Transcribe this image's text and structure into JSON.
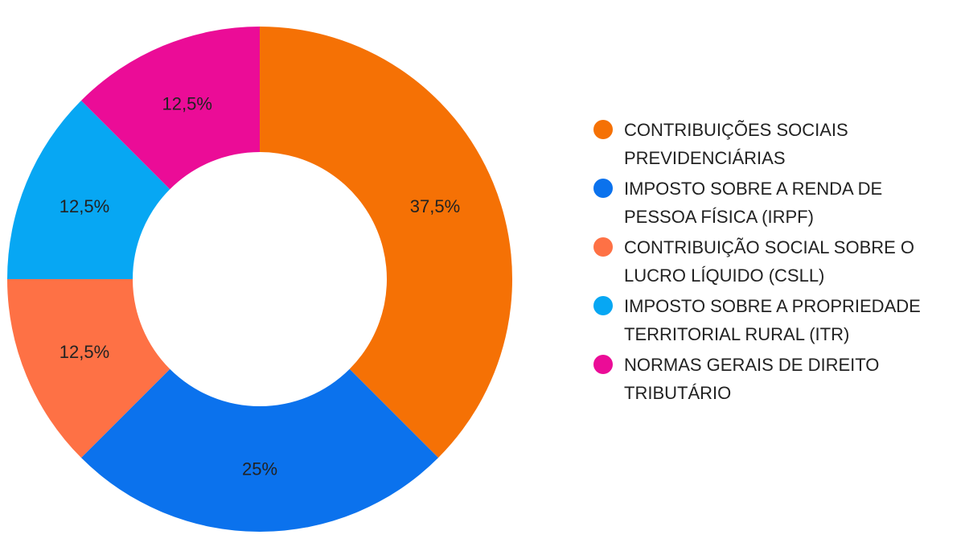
{
  "chart_data": {
    "type": "pie",
    "donut": true,
    "title": "",
    "legend_position": "right",
    "start_angle": "top",
    "direction": "clockwise",
    "categories": [
      "CONTRIBUIÇÕES SOCIAIS PREVIDENCIÁRIAS",
      "IMPOSTO SOBRE A RENDA DE PESSOA FÍSICA (IRPF)",
      "CONTRIBUIÇÃO SOCIAL SOBRE O LUCRO LÍQUIDO (CSLL)",
      "IMPOSTO SOBRE A PROPRIEDADE TERRITORIAL RURAL (ITR)",
      "NORMAS GERAIS DE DIREITO TRIBUTÁRIO"
    ],
    "values": [
      37.5,
      25,
      12.5,
      12.5,
      12.5
    ],
    "value_labels": [
      "37,5%",
      "25%",
      "12,5%",
      "12,5%",
      "12,5%"
    ],
    "colors": [
      "#f57105",
      "#0b72ed",
      "#fe7145",
      "#07a7f3",
      "#eb0c97"
    ]
  }
}
